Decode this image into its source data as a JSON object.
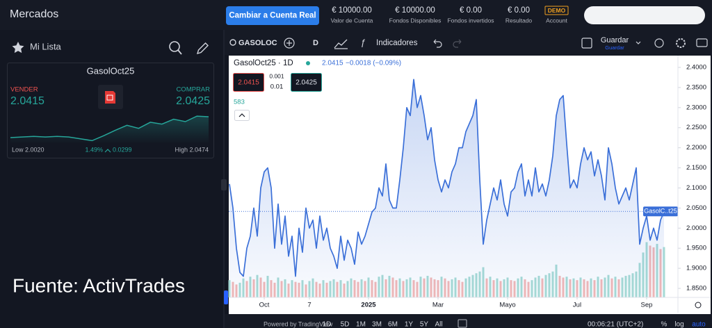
{
  "header": {
    "title": "Mercados",
    "button": "Cambiar a Cuenta Real",
    "stats": [
      {
        "value": "€ 10000.00",
        "label": "Valor de Cuenta"
      },
      {
        "value": "€ 10000.00",
        "label": "Fondos Disponibles"
      },
      {
        "value": "€ 0.00",
        "label": "Fondos invertidos"
      },
      {
        "value": "€ 0.00",
        "label": "Resultado"
      }
    ],
    "demo": "DEMO",
    "account": "Account"
  },
  "watchlist": {
    "title": "Mi Lista",
    "card": {
      "symbol": "GasolOct25",
      "sell_label": "VENDER",
      "sell": "2.0415",
      "buy_label": "COMPRAR",
      "buy": "2.0425",
      "low": "Low 2.0020",
      "change": "1.49%",
      "change_abs": "0.0299",
      "high": "High 2.0474",
      "sparkline": [
        2.01,
        2.011,
        2.012,
        2.011,
        2.012,
        2.011,
        2.008,
        2.005,
        2.013,
        2.022,
        2.03,
        2.025,
        2.035,
        2.032,
        2.04,
        2.036,
        2.045,
        2.044
      ],
      "sparkline_ylim": [
        2.002,
        2.0474
      ]
    }
  },
  "source": "Fuente: ActivTrades",
  "toolbar": {
    "symbol": "GASOLOC",
    "interval": "D",
    "indicators": "Indicadores",
    "save": "Guardar",
    "save_sub": "Guardar"
  },
  "chart_data": {
    "type": "area",
    "title": "GasolOct25 · 1D",
    "last": "2.0415",
    "change": "−0.0018 (−0.09%)",
    "sell": "2.0415",
    "spread_top": "0.001",
    "spread_bottom": "0.01",
    "buy": "2.0425",
    "volume_label": "583",
    "price_tag": "GasolC..t25",
    "price_line": 2.0415,
    "color": "#3a6fd8",
    "grid": false,
    "values": [
      2.11,
      2.05,
      1.95,
      1.89,
      1.88,
      1.95,
      1.98,
      2.05,
      1.98,
      2.1,
      2.14,
      2.15,
      2.1,
      1.95,
      2.06,
      1.96,
      2.03,
      1.93,
      1.98,
      1.88,
      2.0,
      1.94,
      2.05,
      2.0,
      2.02,
      1.95,
      2.03,
      1.97,
      2.0,
      1.95,
      1.93,
      1.9,
      1.98,
      1.92,
      1.97,
      1.95,
      1.91,
      1.99,
      1.96,
      1.98,
      2.01,
      2.04,
      2.05,
      2.1,
      2.08,
      2.16,
      2.07,
      2.05,
      2.05,
      2.12,
      2.2,
      2.3,
      2.28,
      2.37,
      2.3,
      2.33,
      2.28,
      2.22,
      2.25,
      2.17,
      2.12,
      2.09,
      2.12,
      2.1,
      2.14,
      2.16,
      2.2,
      2.2,
      2.24,
      2.26,
      2.28,
      2.32,
      2.12,
      1.96,
      2.02,
      2.06,
      2.1,
      2.07,
      2.12,
      2.06,
      2.03,
      2.09,
      2.1,
      2.14,
      2.16,
      2.08,
      2.12,
      2.08,
      2.15,
      2.09,
      2.11,
      2.08,
      2.12,
      2.18,
      2.28,
      2.32,
      2.33,
      2.21,
      2.1,
      2.12,
      2.1,
      2.16,
      2.2,
      2.17,
      2.19,
      2.13,
      2.17,
      2.13,
      2.07,
      2.2,
      2.16,
      2.1,
      2.06,
      2.08,
      2.1,
      2.07,
      2.11,
      2.15,
      1.96,
      2.0,
      2.03,
      1.97,
      2.0,
      1.97,
      2.02,
      2.04
    ],
    "volume": [
      200,
      180,
      150,
      170,
      220,
      190,
      240,
      210,
      260,
      230,
      180,
      250,
      200,
      170,
      230,
      190,
      210,
      160,
      200,
      180,
      170,
      200,
      150,
      190,
      220,
      180,
      160,
      200,
      170,
      190,
      210,
      180,
      200,
      160,
      190,
      220,
      200,
      180,
      210,
      190,
      230,
      200,
      180,
      240,
      260,
      210,
      250,
      230,
      200,
      220,
      190,
      210,
      230,
      200,
      180,
      240,
      220,
      250,
      230,
      210,
      200,
      240,
      220,
      190,
      210,
      230,
      200,
      180,
      220,
      240,
      260,
      280,
      300,
      350,
      220,
      240,
      200,
      220,
      190,
      210,
      230,
      200,
      190,
      220,
      240,
      210,
      180,
      200,
      230,
      250,
      220,
      260,
      280,
      300,
      380,
      250,
      230,
      240,
      210,
      220,
      200,
      230,
      210,
      190,
      220,
      200,
      240,
      210,
      230,
      260,
      220,
      240,
      210,
      230,
      250,
      260,
      280,
      300,
      400,
      520,
      640,
      600,
      580,
      620,
      560,
      583
    ],
    "volume_ylim": [
      0,
      2800
    ],
    "ylim": [
      1.8275,
      2.4294
    ],
    "yticks": [
      {
        "value": 2.4,
        "label": "2.4000"
      },
      {
        "value": 2.35,
        "label": "2.3500"
      },
      {
        "value": 2.3,
        "label": "2.3000"
      },
      {
        "value": 2.25,
        "label": "2.2500"
      },
      {
        "value": 2.2,
        "label": "2.2000"
      },
      {
        "value": 2.15,
        "label": "2.1500"
      },
      {
        "value": 2.1,
        "label": "2.1000"
      },
      {
        "value": 2.05,
        "label": "2.0500"
      },
      {
        "value": 2.0,
        "label": "2.0000"
      },
      {
        "value": 1.95,
        "label": "1.9500"
      },
      {
        "value": 1.9,
        "label": "1.9000"
      },
      {
        "value": 1.85,
        "label": "1.8500"
      }
    ],
    "xlim": [
      -0.2,
      129
    ],
    "xticks": [
      {
        "value": 10,
        "label": "Oct"
      },
      {
        "value": 23,
        "label": "7"
      },
      {
        "value": 40,
        "label": "2025"
      },
      {
        "value": 60,
        "label": "Mar"
      },
      {
        "value": 80,
        "label": "Mayo"
      },
      {
        "value": 100,
        "label": "Jul"
      },
      {
        "value": 120,
        "label": "Sep"
      }
    ]
  },
  "footer": {
    "powered": "Powered by TradingView",
    "ranges": [
      "1D",
      "5D",
      "1M",
      "3M",
      "6M",
      "1Y",
      "5Y",
      "All"
    ],
    "time": "00:06:21 (UTC+2)",
    "percent": "%",
    "log": "log",
    "auto": "auto"
  }
}
